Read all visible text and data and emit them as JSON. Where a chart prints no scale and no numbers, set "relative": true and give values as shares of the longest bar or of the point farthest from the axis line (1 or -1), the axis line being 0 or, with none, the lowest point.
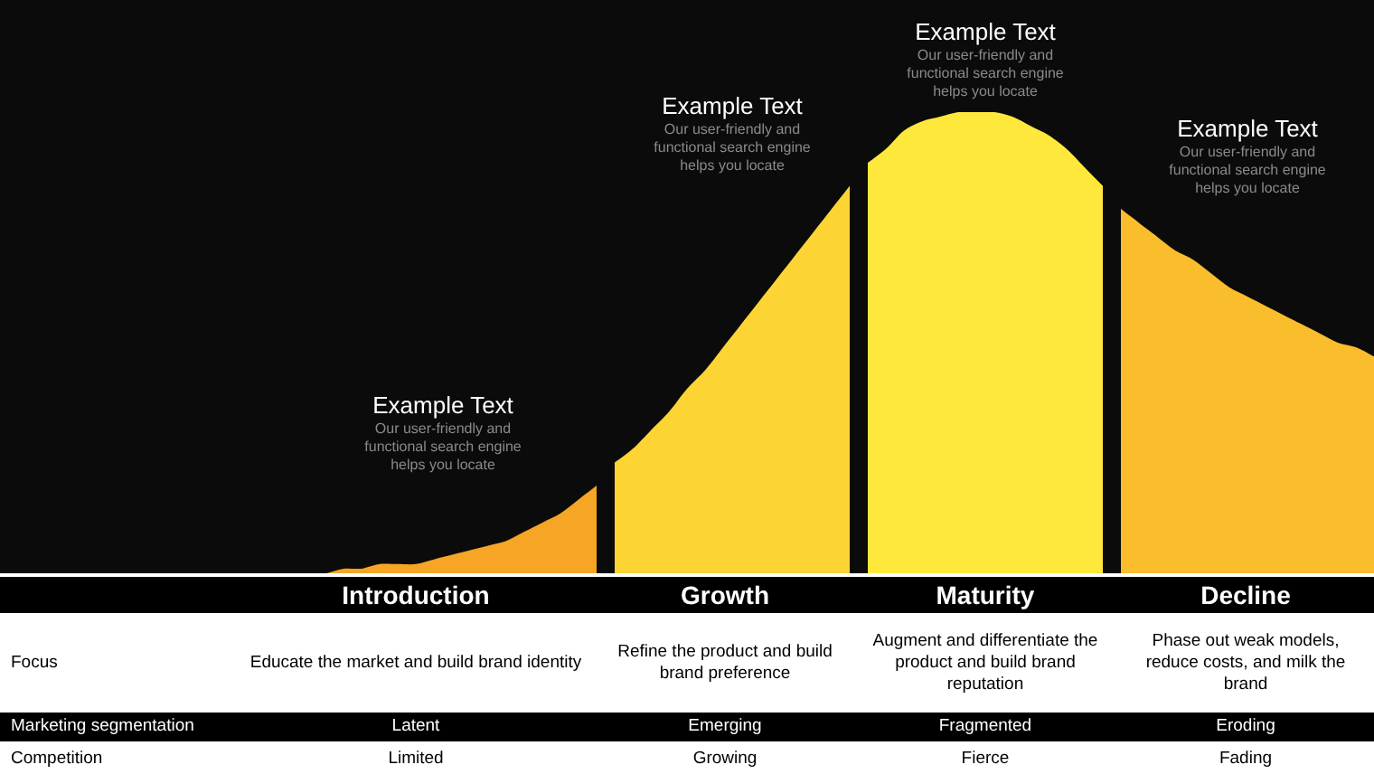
{
  "chart_data": {
    "type": "area",
    "relative": true,
    "legend": false,
    "categories": [
      null,
      null,
      null,
      null,
      null,
      null,
      null,
      null,
      null,
      null,
      null,
      null,
      null,
      null,
      null,
      null,
      null,
      null,
      null,
      null,
      null,
      null,
      null,
      null,
      null,
      null,
      null,
      null,
      null,
      null,
      null,
      null,
      null,
      null,
      null,
      null,
      null,
      null,
      null,
      null,
      null,
      null,
      null,
      null,
      null,
      null,
      null,
      null,
      null,
      null,
      null,
      null,
      null,
      null,
      null,
      null,
      null,
      null,
      null,
      null,
      null,
      null,
      null,
      null,
      null,
      null,
      null,
      null,
      null,
      null,
      null,
      null,
      null,
      null,
      null,
      null,
      null
    ],
    "series": [
      {
        "name": "Introduction",
        "color": "#f7a524",
        "values": [
          null,
          null,
          null,
          null,
          null,
          null,
          null,
          null,
          null,
          null,
          null,
          null,
          null,
          null,
          null,
          null,
          0,
          0,
          0,
          0.01,
          0.01,
          0.02,
          0.02,
          0.02,
          0.03,
          0.04,
          0.05,
          0.06,
          0.07,
          0.09,
          0.11,
          0.13,
          0.16,
          0.19,
          null,
          null,
          null,
          null,
          null,
          null,
          null,
          null,
          null,
          null,
          null,
          null,
          null,
          null,
          null,
          null,
          null,
          null,
          null,
          null,
          null,
          null,
          null,
          null,
          null,
          null,
          null,
          null,
          null,
          null,
          null,
          null,
          null,
          null,
          null,
          null,
          null,
          null,
          null,
          null,
          null,
          null,
          null
        ]
      },
      {
        "name": "Growth",
        "color": "#fcd534",
        "values": [
          null,
          null,
          null,
          null,
          null,
          null,
          null,
          null,
          null,
          null,
          null,
          null,
          null,
          null,
          null,
          null,
          null,
          null,
          null,
          null,
          null,
          null,
          null,
          null,
          null,
          null,
          null,
          null,
          null,
          null,
          null,
          null,
          null,
          null,
          0.24,
          0.27,
          0.31,
          0.35,
          0.4,
          0.44,
          0.49,
          0.54,
          0.59,
          0.64,
          0.69,
          0.74,
          0.79,
          0.84,
          null,
          null,
          null,
          null,
          null,
          null,
          null,
          null,
          null,
          null,
          null,
          null,
          null,
          null,
          null,
          null,
          null,
          null,
          null,
          null,
          null,
          null,
          null,
          null,
          null,
          null,
          null,
          null,
          null
        ]
      },
      {
        "name": "Maturity",
        "color": "#fee83c",
        "values": [
          null,
          null,
          null,
          null,
          null,
          null,
          null,
          null,
          null,
          null,
          null,
          null,
          null,
          null,
          null,
          null,
          null,
          null,
          null,
          null,
          null,
          null,
          null,
          null,
          null,
          null,
          null,
          null,
          null,
          null,
          null,
          null,
          null,
          null,
          null,
          null,
          null,
          null,
          null,
          null,
          null,
          null,
          null,
          null,
          null,
          null,
          null,
          null,
          0.89,
          0.92,
          0.96,
          0.98,
          0.99,
          1,
          1,
          1,
          0.99,
          0.97,
          0.95,
          0.92,
          0.88,
          0.84,
          null,
          null,
          null,
          null,
          null,
          null,
          null,
          null,
          null,
          null,
          null,
          null,
          null,
          null,
          null
        ]
      },
      {
        "name": "Decline",
        "color": "#fabd2c",
        "values": [
          null,
          null,
          null,
          null,
          null,
          null,
          null,
          null,
          null,
          null,
          null,
          null,
          null,
          null,
          null,
          null,
          null,
          null,
          null,
          null,
          null,
          null,
          null,
          null,
          null,
          null,
          null,
          null,
          null,
          null,
          null,
          null,
          null,
          null,
          null,
          null,
          null,
          null,
          null,
          null,
          null,
          null,
          null,
          null,
          null,
          null,
          null,
          null,
          null,
          null,
          null,
          null,
          null,
          null,
          null,
          null,
          null,
          null,
          null,
          null,
          null,
          null,
          0.79,
          0.76,
          0.73,
          0.7,
          0.68,
          0.65,
          0.62,
          0.6,
          0.58,
          0.56,
          0.54,
          0.52,
          0.5,
          0.49,
          0.47
        ]
      }
    ],
    "annotations": [
      "Example Text",
      "Our user-friendly and\nfunctional search engine\nhelps you locate",
      "Example Text",
      "Our user-friendly and\nfunctional search engine\nhelps you locate",
      "Example Text",
      "Our user-friendly and\nfunctional search engine\nhelps you locate",
      "Example Text",
      "Our user-friendly and\nfunctional search engine\nhelps you locate",
      "Focus",
      "Educate the market and build brand identity",
      "Refine the product and build brand preference",
      "Augment and differentiate the product and build brand reputation",
      "Phase out weak models, reduce costs, and milk the brand",
      "Marketing segmentation",
      "Latent",
      "Emerging",
      "Fragmented",
      "Eroding",
      "Competition",
      "Limited",
      "Growing",
      "Fierce",
      "Fading"
    ]
  }
}
